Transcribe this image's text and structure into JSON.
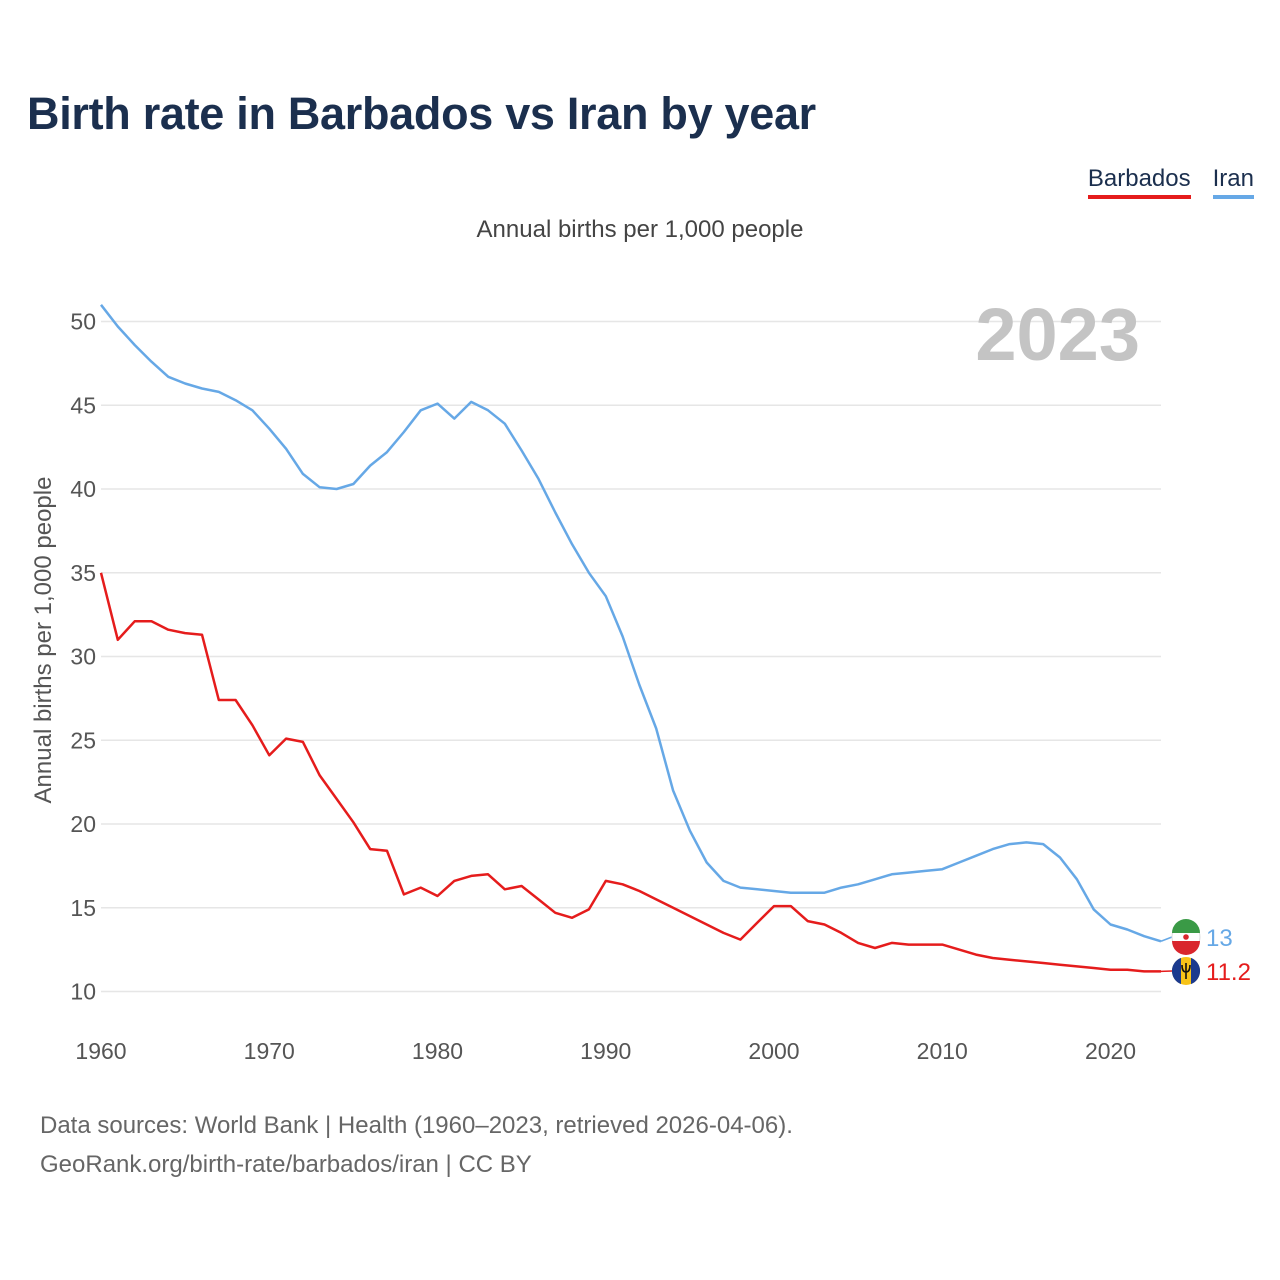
{
  "title": "Birth rate in Barbados vs Iran by year",
  "subtitle": "Annual births per 1,000 people",
  "legend": {
    "barbados": "Barbados",
    "iran": "Iran"
  },
  "colors": {
    "barbados": "#e51c1c",
    "iran": "#66a8e6",
    "year_watermark": "#c4c4c4",
    "grid": "#e6e6e6"
  },
  "footer": {
    "line1": "Data sources: World Bank | Health (1960–2023, retrieved 2026-04-06).",
    "line2": "GeoRank.org/birth-rate/barbados/iran | CC BY"
  },
  "chart_data": {
    "type": "line",
    "title": "Birth rate in Barbados vs Iran by year",
    "ylabel": "Annual births per 1,000 people",
    "xlabel": "",
    "year_watermark": "2023",
    "xlim": [
      1960,
      2023
    ],
    "ylim": [
      8,
      52
    ],
    "x_ticks": [
      1960,
      1970,
      1980,
      1990,
      2000,
      2010,
      2020
    ],
    "y_ticks": [
      10,
      15,
      20,
      25,
      30,
      35,
      40,
      45,
      50
    ],
    "grid": true,
    "legend_position": "top-right",
    "x": [
      1960,
      1961,
      1962,
      1963,
      1964,
      1965,
      1966,
      1967,
      1968,
      1969,
      1970,
      1971,
      1972,
      1973,
      1974,
      1975,
      1976,
      1977,
      1978,
      1979,
      1980,
      1981,
      1982,
      1983,
      1984,
      1985,
      1986,
      1987,
      1988,
      1989,
      1990,
      1991,
      1992,
      1993,
      1994,
      1995,
      1996,
      1997,
      1998,
      1999,
      2000,
      2001,
      2002,
      2003,
      2004,
      2005,
      2006,
      2007,
      2008,
      2009,
      2010,
      2011,
      2012,
      2013,
      2014,
      2015,
      2016,
      2017,
      2018,
      2019,
      2020,
      2021,
      2022,
      2023
    ],
    "series": [
      {
        "name": "Barbados",
        "end_label": "11.2",
        "values": [
          35.0,
          31.0,
          32.1,
          32.1,
          31.6,
          31.4,
          31.3,
          27.4,
          27.4,
          25.9,
          24.1,
          25.1,
          24.9,
          22.9,
          21.5,
          20.1,
          18.5,
          18.4,
          15.8,
          16.2,
          15.7,
          16.6,
          16.9,
          17.0,
          16.1,
          16.3,
          15.5,
          14.7,
          14.4,
          14.9,
          16.6,
          16.4,
          16.0,
          15.5,
          15.0,
          14.5,
          14.0,
          13.5,
          13.1,
          14.1,
          15.1,
          15.1,
          14.2,
          14.0,
          13.5,
          12.9,
          12.6,
          12.9,
          12.8,
          12.8,
          12.8,
          12.5,
          12.2,
          12.0,
          11.9,
          11.8,
          11.7,
          11.6,
          11.5,
          11.4,
          11.3,
          11.3,
          11.2,
          11.2
        ]
      },
      {
        "name": "Iran",
        "end_label": "13",
        "values": [
          51.0,
          49.7,
          48.6,
          47.6,
          46.7,
          46.3,
          46.0,
          45.8,
          45.3,
          44.7,
          43.6,
          42.4,
          40.9,
          40.1,
          40.0,
          40.3,
          41.4,
          42.2,
          43.4,
          44.7,
          45.1,
          44.2,
          45.2,
          44.7,
          43.9,
          42.3,
          40.6,
          38.6,
          36.7,
          35.0,
          33.6,
          31.2,
          28.3,
          25.7,
          22.0,
          19.6,
          17.7,
          16.6,
          16.2,
          16.1,
          16.0,
          15.9,
          15.9,
          15.9,
          16.2,
          16.4,
          16.7,
          17.0,
          17.1,
          17.2,
          17.3,
          17.7,
          18.1,
          18.5,
          18.8,
          18.9,
          18.8,
          18.0,
          16.7,
          14.9,
          14.0,
          13.7,
          13.3,
          13.0
        ]
      }
    ]
  }
}
